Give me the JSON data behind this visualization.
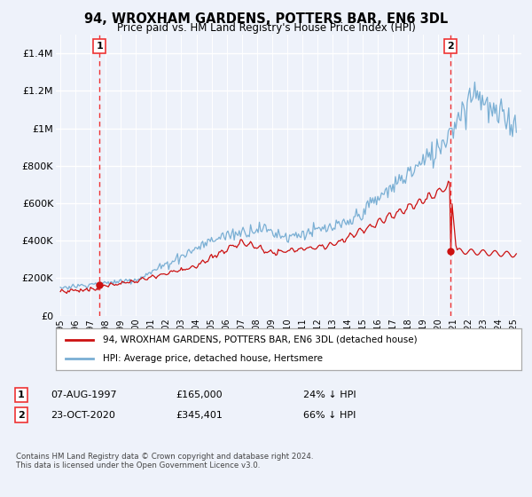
{
  "title": "94, WROXHAM GARDENS, POTTERS BAR, EN6 3DL",
  "subtitle": "Price paid vs. HM Land Registry's House Price Index (HPI)",
  "legend_line1": "94, WROXHAM GARDENS, POTTERS BAR, EN6 3DL (detached house)",
  "legend_line2": "HPI: Average price, detached house, Hertsmere",
  "sale1_date": "07-AUG-1997",
  "sale1_price": "£165,000",
  "sale1_hpi": "24% ↓ HPI",
  "sale1_year": 1997.6,
  "sale1_value": 165000,
  "sale2_date": "23-OCT-2020",
  "sale2_price": "£345,401",
  "sale2_hpi": "66% ↓ HPI",
  "sale2_year": 2020.8,
  "sale2_value": 345401,
  "footer": "Contains HM Land Registry data © Crown copyright and database right 2024.\nThis data is licensed under the Open Government Licence v3.0.",
  "bg_color": "#eef2fa",
  "grid_color": "#ffffff",
  "hpi_color": "#7aafd4",
  "price_color": "#cc1111",
  "dash_color": "#ee3333",
  "ylim_max": 1500000,
  "xlim_start": 1994.7,
  "xlim_end": 2025.5
}
